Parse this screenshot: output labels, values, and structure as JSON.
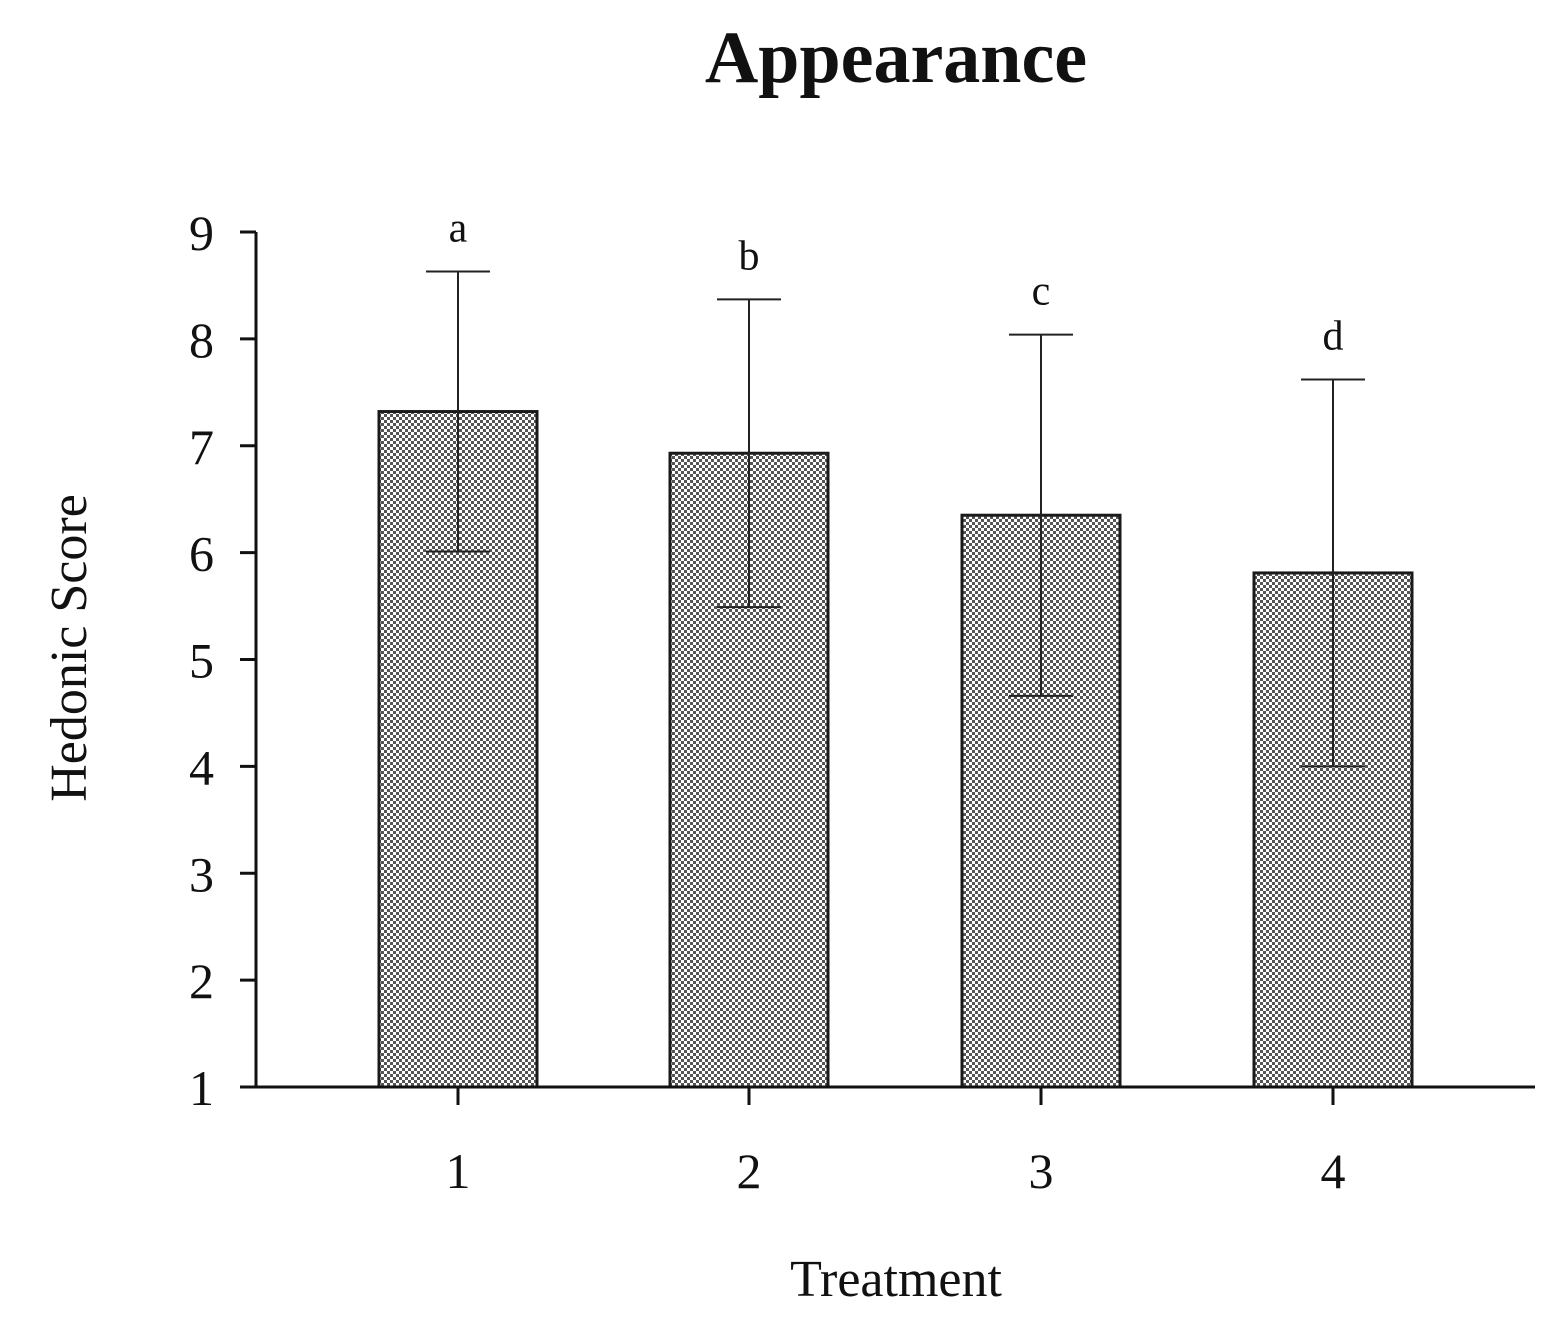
{
  "chart_data": {
    "type": "bar",
    "title": "Appearance",
    "xlabel": "Treatment",
    "ylabel": "Hedonic Score",
    "categories": [
      "1",
      "2",
      "3",
      "4"
    ],
    "values": [
      7.32,
      6.93,
      6.35,
      5.81
    ],
    "error": [
      1.31,
      1.44,
      1.69,
      1.81
    ],
    "significance_letters": [
      "a",
      "b",
      "c",
      "d"
    ],
    "ylim": [
      1,
      9
    ],
    "yticks": [
      1,
      2,
      3,
      4,
      5,
      6,
      7,
      8,
      9
    ],
    "grid": false,
    "legend": "none",
    "bar_fill": "dotted pattern",
    "colors": {
      "bar_stroke": "#1a1a1a",
      "bar_dots": "#555555",
      "axis": "#111111"
    }
  }
}
